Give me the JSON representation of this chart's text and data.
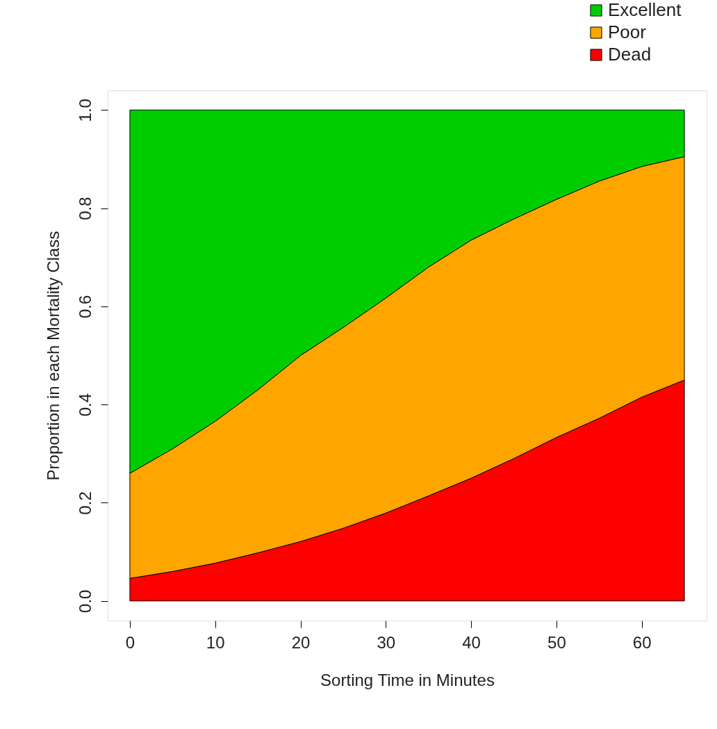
{
  "chart_data": {
    "type": "area",
    "stacked": true,
    "xlabel": "Sorting Time in Minutes",
    "ylabel": "Proportion in each Mortality Class",
    "x": [
      0,
      5,
      10,
      15,
      20,
      25,
      30,
      35,
      40,
      45,
      50,
      55,
      60,
      65
    ],
    "series": [
      {
        "name": "Dead",
        "color": "#ff0000",
        "values": [
          0.046,
          0.06,
          0.077,
          0.098,
          0.121,
          0.148,
          0.179,
          0.214,
          0.25,
          0.29,
          0.333,
          0.372,
          0.415,
          0.45
        ]
      },
      {
        "name": "Poor",
        "color": "#ffa500",
        "values": [
          0.214,
          0.25,
          0.289,
          0.332,
          0.379,
          0.409,
          0.438,
          0.466,
          0.485,
          0.488,
          0.485,
          0.483,
          0.47,
          0.455
        ]
      },
      {
        "name": "Excellent",
        "color": "#00cd00",
        "values": [
          0.74,
          0.69,
          0.634,
          0.57,
          0.5,
          0.443,
          0.383,
          0.32,
          0.265,
          0.222,
          0.182,
          0.145,
          0.115,
          0.095
        ]
      }
    ],
    "xlim": [
      -2.6,
      67.6
    ],
    "ylim": [
      -0.04,
      1.04
    ],
    "xticks": [
      0,
      10,
      20,
      30,
      40,
      50,
      60
    ],
    "yticks": [
      {
        "value": 0,
        "label": "0.0"
      },
      {
        "value": 0.2,
        "label": "0.2"
      },
      {
        "value": 0.4,
        "label": "0.4"
      },
      {
        "value": 0.6,
        "label": "0.6"
      },
      {
        "value": 0.8,
        "label": "0.8"
      },
      {
        "value": 1,
        "label": "1.0"
      }
    ],
    "legend": "top right",
    "grid": false
  }
}
